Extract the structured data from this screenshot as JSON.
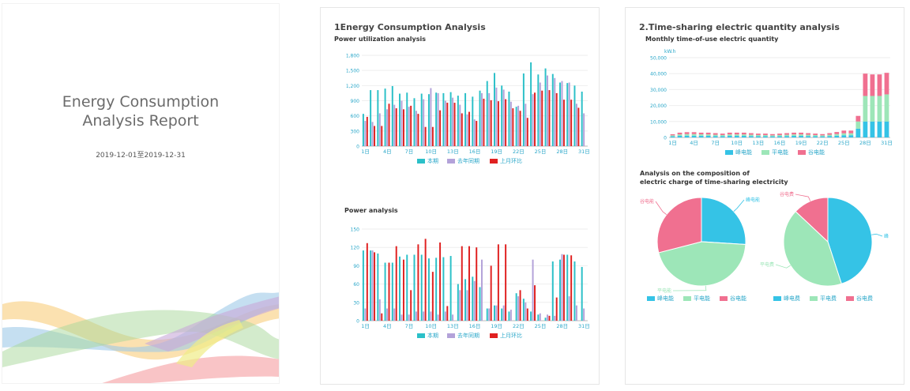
{
  "cover": {
    "title_line1": "Energy Consumption",
    "title_line2": "Analysis Report",
    "date_range": "2019-12-01至2019-12-31"
  },
  "page1": {
    "section_title": "1Energy Consumption Analysis",
    "chart1_title": "Power utilization analysis",
    "chart2_title": "Power analysis"
  },
  "page2": {
    "section_title": "2.Time-sharing electric quantity analysis",
    "chart3_title": "Monthly time-of-use electric quantity",
    "chart4_title_line1": "Analysis on the composition of",
    "chart4_title_line2": "electric charge of time-sharing electricity"
  },
  "colors": {
    "teal": "#2bc0c8",
    "purple": "#b3a2d9",
    "red": "#e02020",
    "blue": "#35c3e6",
    "green": "#9de6b8",
    "pink": "#f07090",
    "axis_text": "#2aa7c9"
  },
  "chart_data": [
    {
      "type": "bar",
      "title": "Power utilization analysis",
      "categories": [
        "1日",
        "2日",
        "3日",
        "4日",
        "5日",
        "6日",
        "7日",
        "8日",
        "9日",
        "10日",
        "11日",
        "12日",
        "13日",
        "14日",
        "15日",
        "16日",
        "17日",
        "18日",
        "19日",
        "20日",
        "21日",
        "22日",
        "23日",
        "24日",
        "25日",
        "26日",
        "27日",
        "28日",
        "29日",
        "30日",
        "31日"
      ],
      "x_tick_labels": [
        "1日",
        "4日",
        "7日",
        "10日",
        "13日",
        "16日",
        "19日",
        "22日",
        "25日",
        "28日",
        "31日"
      ],
      "y_tick_labels": [
        "0",
        "300",
        "600",
        "900",
        "1,200",
        "1,500",
        "1,800"
      ],
      "ylim": [
        0,
        1800
      ],
      "legend": "bottom-center",
      "series": [
        {
          "name": "本期",
          "color": "#2bc0c8",
          "values": [
            640,
            1110,
            1110,
            1140,
            1190,
            1040,
            1060,
            950,
            1040,
            1030,
            1060,
            1050,
            1070,
            1000,
            1050,
            980,
            1100,
            1290,
            1450,
            1200,
            1080,
            780,
            1440,
            1660,
            1420,
            1540,
            1430,
            1260,
            1250,
            1200,
            1080
          ]
        },
        {
          "name": "去年同期",
          "color": "#b3a2d9",
          "values": [
            500,
            480,
            650,
            730,
            820,
            900,
            780,
            700,
            930,
            1150,
            1050,
            900,
            960,
            820,
            630,
            530,
            1050,
            1050,
            1160,
            1120,
            880,
            800,
            840,
            1030,
            1260,
            1400,
            1350,
            1290,
            1260,
            840,
            650
          ]
        },
        {
          "name": "上月环比",
          "color": "#e02020",
          "values": [
            580,
            400,
            400,
            840,
            750,
            730,
            800,
            640,
            380,
            380,
            710,
            860,
            860,
            650,
            680,
            500,
            940,
            910,
            890,
            930,
            750,
            700,
            560,
            1060,
            1100,
            1110,
            1050,
            920,
            920,
            760,
            0
          ]
        }
      ]
    },
    {
      "type": "bar",
      "title": "Power analysis",
      "categories": [
        "1日",
        "2日",
        "3日",
        "4日",
        "5日",
        "6日",
        "7日",
        "8日",
        "9日",
        "10日",
        "11日",
        "12日",
        "13日",
        "14日",
        "15日",
        "16日",
        "17日",
        "18日",
        "19日",
        "20日",
        "21日",
        "22日",
        "23日",
        "24日",
        "25日",
        "26日",
        "27日",
        "28日",
        "29日",
        "30日",
        "31日"
      ],
      "x_tick_labels": [
        "1日",
        "4日",
        "7日",
        "10日",
        "13日",
        "16日",
        "19日",
        "22日",
        "25日",
        "28日",
        "31日"
      ],
      "y_tick_labels": [
        "0",
        "30",
        "60",
        "90",
        "120",
        "150"
      ],
      "ylim": [
        0,
        150
      ],
      "legend": "bottom-center",
      "series": [
        {
          "name": "本期",
          "color": "#2bc0c8",
          "values": [
            115,
            115,
            110,
            95,
            95,
            105,
            108,
            108,
            108,
            102,
            103,
            104,
            106,
            60,
            68,
            72,
            55,
            20,
            25,
            20,
            15,
            45,
            36,
            15,
            10,
            5,
            97,
            100,
            108,
            97,
            88
          ]
        },
        {
          "name": "去年同期",
          "color": "#b3a2d9",
          "values": [
            20,
            115,
            35,
            20,
            20,
            10,
            10,
            15,
            15,
            15,
            10,
            15,
            10,
            50,
            50,
            65,
            100,
            20,
            25,
            25,
            18,
            40,
            30,
            100,
            12,
            10,
            8,
            109,
            40,
            25,
            20
          ]
        },
        {
          "name": "上月环比",
          "color": "#e02020",
          "values": [
            127,
            112,
            12,
            95,
            122,
            100,
            50,
            125,
            134,
            80,
            128,
            24,
            0,
            122,
            122,
            120,
            0,
            90,
            125,
            125,
            0,
            50,
            20,
            58,
            0,
            8,
            38,
            108,
            107,
            0,
            0
          ]
        }
      ]
    },
    {
      "type": "bar",
      "title": "Monthly time-of-use electric quantity",
      "ylabel": "kW.h",
      "stacked": true,
      "categories": [
        "1日",
        "2日",
        "3日",
        "4日",
        "5日",
        "6日",
        "7日",
        "8日",
        "9日",
        "10日",
        "11日",
        "12日",
        "13日",
        "14日",
        "15日",
        "16日",
        "17日",
        "18日",
        "19日",
        "20日",
        "21日",
        "22日",
        "23日",
        "24日",
        "25日",
        "26日",
        "27日",
        "28日",
        "29日",
        "30日",
        "31日"
      ],
      "x_tick_labels": [
        "1日",
        "4日",
        "7日",
        "10日",
        "13日",
        "16日",
        "19日",
        "22日",
        "25日",
        "28日",
        "31日"
      ],
      "y_tick_labels": [
        "0",
        "10,000",
        "20,000",
        "30,000",
        "40,000",
        "50,000"
      ],
      "ylim": [
        0,
        50000
      ],
      "legend": "bottom-center",
      "series": [
        {
          "name": "峰电能",
          "color": "#35c3e6",
          "values": [
            700,
            1000,
            1100,
            1100,
            1050,
            1000,
            900,
            800,
            1000,
            1000,
            1000,
            900,
            800,
            800,
            700,
            800,
            900,
            1000,
            1000,
            900,
            800,
            700,
            900,
            1100,
            1400,
            1400,
            5500,
            10000,
            10000,
            10000,
            10000
          ]
        },
        {
          "name": "平电能",
          "color": "#9de6b8",
          "values": [
            600,
            900,
            1000,
            1000,
            900,
            900,
            800,
            700,
            900,
            900,
            900,
            800,
            700,
            700,
            600,
            700,
            800,
            900,
            900,
            800,
            700,
            600,
            800,
            1000,
            1200,
            1200,
            4500,
            16000,
            16000,
            16000,
            17000
          ]
        },
        {
          "name": "谷电能",
          "color": "#f07090",
          "values": [
            700,
            1100,
            1200,
            1200,
            1050,
            1100,
            1000,
            900,
            1100,
            1100,
            1100,
            1000,
            900,
            900,
            800,
            900,
            1000,
            1100,
            1100,
            1000,
            900,
            800,
            1000,
            1300,
            1700,
            1700,
            3500,
            14000,
            13500,
            13500,
            13500
          ]
        }
      ]
    },
    {
      "type": "pie",
      "title": "Analysis on the composition of electric charge of time-sharing electricity",
      "legend": "bottom-center",
      "slices": [
        {
          "label": "峰电能",
          "legend": "峰电能",
          "value": 26,
          "color": "#35c3e6"
        },
        {
          "label": "平电能",
          "legend": "平电能",
          "value": 45,
          "color": "#9de6b8"
        },
        {
          "label": "谷电能",
          "legend": "谷电能",
          "value": 29,
          "color": "#f07090"
        }
      ]
    },
    {
      "type": "pie",
      "legend": "bottom-center",
      "slices": [
        {
          "label": "峰",
          "legend": "峰电费",
          "value": 45,
          "color": "#35c3e6"
        },
        {
          "label": "平电费",
          "legend": "平电费",
          "value": 42,
          "color": "#9de6b8"
        },
        {
          "label": "谷电费",
          "legend": "谷电费",
          "value": 13,
          "color": "#f07090"
        }
      ]
    }
  ]
}
